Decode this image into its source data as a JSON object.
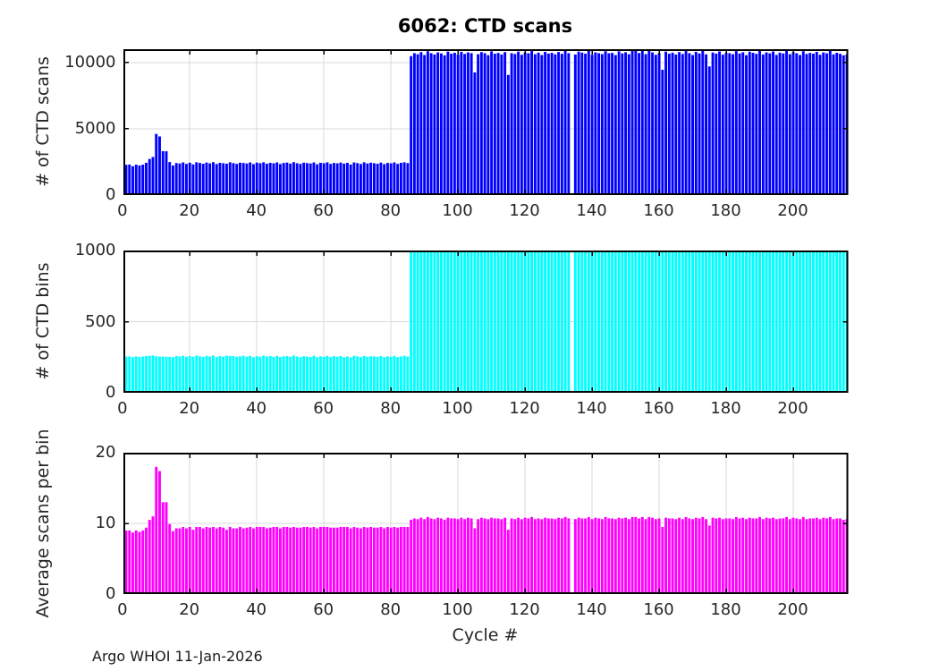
{
  "title": "6062: CTD scans",
  "xlabel": "Cycle #",
  "footer": "Argo WHOI 11-Jan-2026",
  "colors": {
    "scans_bar": "#0000ff",
    "bins_bar": "#00ffff",
    "avg_bar": "#ff00ff",
    "grid": "#d9d9d9",
    "axis_frame": "#000000",
    "tick_label": "#262626",
    "background": "#ffffff"
  },
  "x_ticks": [
    0,
    20,
    40,
    60,
    80,
    100,
    120,
    140,
    160,
    180,
    200
  ],
  "xlim": [
    0.2,
    216.4
  ],
  "first_cycle": 1,
  "chart_data": [
    {
      "type": "bar",
      "name": "ctd-scans",
      "title": "6062: CTD scans",
      "xlabel": "",
      "ylabel": "# of CTD scans",
      "ylim": [
        0,
        11000
      ],
      "yticks": [
        0,
        5000,
        10000
      ],
      "grid": true,
      "color": "#0000ff",
      "values": [
        2280,
        2300,
        2170,
        2290,
        2230,
        2290,
        2430,
        2720,
        2870,
        4610,
        4420,
        3310,
        3300,
        2490,
        2230,
        2410,
        2380,
        2460,
        2350,
        2440,
        2310,
        2470,
        2420,
        2360,
        2450,
        2390,
        2480,
        2340,
        2430,
        2400,
        2360,
        2470,
        2410,
        2350,
        2440,
        2420,
        2380,
        2460,
        2330,
        2450,
        2400,
        2470,
        2360,
        2430,
        2390,
        2460,
        2340,
        2420,
        2450,
        2370,
        2480,
        2400,
        2350,
        2440,
        2410,
        2380,
        2460,
        2320,
        2430,
        2400,
        2470,
        2350,
        2420,
        2390,
        2450,
        2370,
        2430,
        2300,
        2460,
        2410,
        2340,
        2470,
        2380,
        2440,
        2400,
        2360,
        2450,
        2330,
        2420,
        2390,
        2460,
        2350,
        2430,
        2470,
        2410,
        10480,
        10700,
        10620,
        10780,
        10560,
        10850,
        10700,
        10600,
        10760,
        10680,
        10540,
        10820,
        10660,
        10730,
        10590,
        10800,
        10640,
        10760,
        10700,
        9250,
        10620,
        10780,
        10700,
        10550,
        10840,
        10660,
        10720,
        10600,
        10780,
        9060,
        10700,
        10640,
        10820,
        10580,
        10750,
        10690,
        10860,
        10620,
        10740,
        10560,
        10800,
        10670,
        10730,
        10610,
        10790,
        10650,
        10880,
        10700,
        0,
        10600,
        10820,
        10740,
        10660,
        10900,
        10580,
        10760,
        10700,
        10630,
        10850,
        10690,
        10720,
        10560,
        10840,
        10680,
        10770,
        10620,
        10890,
        10900,
        10710,
        10920,
        10630,
        10940,
        10760,
        10580,
        10700,
        9450,
        10820,
        10660,
        10740,
        10600,
        10780,
        10640,
        10860,
        10700,
        10560,
        10800,
        10680,
        10920,
        10610,
        9700,
        10750,
        10670,
        10830,
        10590,
        10740,
        10700,
        10620,
        10860,
        10680,
        10770,
        10550,
        10810,
        10730,
        10650,
        10880,
        10600,
        10760,
        10690,
        10830,
        10570,
        10740,
        10680,
        10900,
        10620,
        10780,
        10700,
        10560,
        10850,
        10640,
        10720,
        10660,
        10800,
        10580,
        10760,
        10690,
        10870,
        10610,
        10730,
        10650,
        10540,
        10600
      ]
    },
    {
      "type": "bar",
      "name": "ctd-bins",
      "title": "",
      "xlabel": "",
      "ylabel": "# of CTD bins",
      "ylim": [
        0,
        1000
      ],
      "yticks": [
        0,
        500,
        1000
      ],
      "grid": true,
      "color": "#00ffff",
      "values": [
        254,
        256,
        250,
        255,
        252,
        255,
        258,
        260,
        262,
        256,
        254,
        255,
        253,
        252,
        250,
        258,
        255,
        260,
        252,
        257,
        254,
        261,
        256,
        253,
        259,
        255,
        262,
        251,
        257,
        254,
        260,
        259,
        258,
        252,
        256,
        260,
        254,
        259,
        250,
        257,
        253,
        261,
        255,
        258,
        252,
        259,
        251,
        256,
        258,
        253,
        261,
        255,
        250,
        257,
        254,
        252,
        260,
        249,
        256,
        253,
        259,
        251,
        257,
        254,
        258,
        250,
        255,
        248,
        260,
        256,
        251,
        259,
        253,
        257,
        255,
        252,
        258,
        250,
        256,
        253,
        259,
        251,
        255,
        260,
        254,
        1000,
        1000,
        1000,
        1000,
        1000,
        1000,
        1000,
        1000,
        1000,
        1000,
        1000,
        1000,
        1000,
        1000,
        1000,
        1000,
        1000,
        1000,
        1000,
        1000,
        1000,
        1000,
        1000,
        1000,
        1000,
        1000,
        1000,
        1000,
        1000,
        1000,
        1000,
        1000,
        1000,
        1000,
        1000,
        1000,
        1000,
        1000,
        1000,
        1000,
        1000,
        1000,
        1000,
        1000,
        1000,
        1000,
        1000,
        1000,
        0,
        1000,
        1000,
        1000,
        1000,
        1000,
        1000,
        1000,
        1000,
        1000,
        1000,
        1000,
        1000,
        1000,
        1000,
        1000,
        1000,
        1000,
        1000,
        1000,
        1000,
        1000,
        1000,
        1000,
        1000,
        1000,
        1000,
        1000,
        1000,
        1000,
        1000,
        1000,
        1000,
        1000,
        1000,
        1000,
        1000,
        1000,
        1000,
        1000,
        1000,
        1000,
        1000,
        1000,
        1000,
        1000,
        1000,
        1000,
        1000,
        1000,
        1000,
        1000,
        1000,
        1000,
        1000,
        1000,
        1000,
        1000,
        1000,
        1000,
        1000,
        1000,
        1000,
        1000,
        1000,
        1000,
        1000,
        1000,
        1000,
        1000,
        1000,
        1000,
        1000,
        1000,
        1000,
        1000,
        1000,
        1000,
        1000,
        1000,
        1000,
        1000,
        1000
      ]
    },
    {
      "type": "bar",
      "name": "avg-scans-per-bin",
      "title": "",
      "xlabel": "Cycle #",
      "ylabel": "Average scans per bin",
      "ylim": [
        0,
        20
      ],
      "yticks": [
        0,
        10,
        20
      ],
      "grid": true,
      "color": "#ff00ff",
      "values": [
        9.0,
        9.0,
        8.7,
        9.0,
        8.8,
        9.0,
        9.4,
        10.5,
        11.0,
        18.0,
        17.4,
        13.0,
        13.0,
        9.9,
        8.9,
        9.3,
        9.3,
        9.5,
        9.3,
        9.5,
        9.1,
        9.5,
        9.5,
        9.3,
        9.5,
        9.4,
        9.5,
        9.3,
        9.5,
        9.4,
        9.1,
        9.5,
        9.3,
        9.3,
        9.5,
        9.3,
        9.4,
        9.5,
        9.3,
        9.5,
        9.5,
        9.5,
        9.3,
        9.4,
        9.5,
        9.5,
        9.3,
        9.5,
        9.5,
        9.4,
        9.5,
        9.4,
        9.4,
        9.5,
        9.5,
        9.4,
        9.5,
        9.3,
        9.5,
        9.5,
        9.5,
        9.4,
        9.4,
        9.4,
        9.5,
        9.5,
        9.5,
        9.3,
        9.5,
        9.4,
        9.3,
        9.5,
        9.4,
        9.5,
        9.4,
        9.4,
        9.5,
        9.3,
        9.5,
        9.4,
        9.5,
        9.4,
        9.5,
        9.5,
        9.5,
        10.5,
        10.7,
        10.6,
        10.8,
        10.6,
        10.9,
        10.7,
        10.6,
        10.8,
        10.7,
        10.5,
        10.8,
        10.7,
        10.7,
        10.6,
        10.8,
        10.6,
        10.8,
        10.7,
        9.3,
        10.6,
        10.8,
        10.7,
        10.6,
        10.8,
        10.7,
        10.7,
        10.6,
        10.8,
        9.1,
        10.7,
        10.6,
        10.8,
        10.6,
        10.8,
        10.7,
        10.9,
        10.6,
        10.7,
        10.6,
        10.8,
        10.7,
        10.7,
        10.6,
        10.8,
        10.7,
        10.9,
        10.7,
        0,
        10.6,
        10.8,
        10.7,
        10.7,
        10.9,
        10.6,
        10.8,
        10.7,
        10.6,
        10.9,
        10.7,
        10.7,
        10.6,
        10.8,
        10.7,
        10.8,
        10.6,
        10.9,
        10.9,
        10.7,
        10.9,
        10.6,
        10.9,
        10.8,
        10.6,
        10.7,
        9.5,
        10.8,
        10.7,
        10.7,
        10.6,
        10.8,
        10.6,
        10.9,
        10.7,
        10.6,
        10.8,
        10.7,
        10.9,
        10.6,
        9.7,
        10.8,
        10.7,
        10.8,
        10.6,
        10.7,
        10.7,
        10.6,
        10.9,
        10.7,
        10.8,
        10.6,
        10.8,
        10.7,
        10.7,
        10.9,
        10.6,
        10.8,
        10.7,
        10.8,
        10.6,
        10.7,
        10.7,
        10.9,
        10.6,
        10.8,
        10.7,
        10.6,
        10.9,
        10.6,
        10.7,
        10.7,
        10.8,
        10.6,
        10.8,
        10.7,
        10.9,
        10.6,
        10.7,
        10.7,
        10.5,
        10.6
      ]
    }
  ]
}
